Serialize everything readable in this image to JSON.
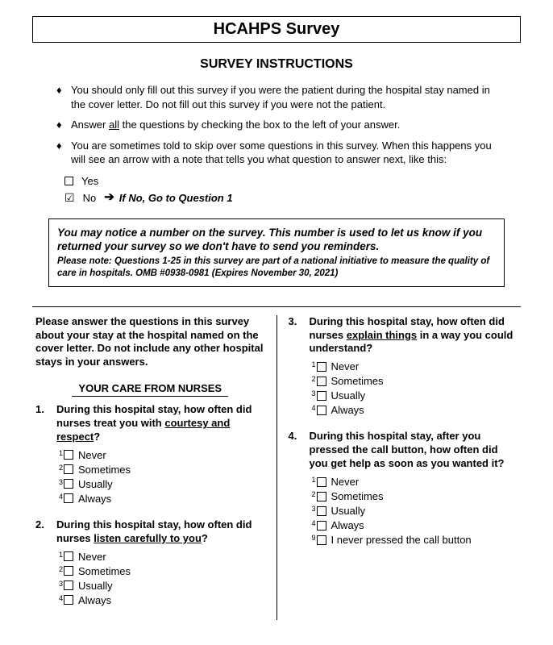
{
  "title": "HCAHPS Survey",
  "instructions_heading": "SURVEY INSTRUCTIONS",
  "bullets": {
    "b1": "You should only fill out this survey if you were the patient during the hospital stay named in the cover letter. Do not fill out this survey if you were not the patient.",
    "b2_pre": "Answer ",
    "b2_underline": "all",
    "b2_post": " the questions by checking the box to the left of your answer.",
    "b3": "You are sometimes told to skip over some questions in this survey. When this happens you will see an arrow with a note that tells you what question to answer next, like this:"
  },
  "example": {
    "yes": "Yes",
    "no": "No",
    "skip": "If No, Go to Question 1"
  },
  "note": {
    "main": "You may notice a number on the survey. This number is used to let us know if you returned your survey so we don't have to send you reminders.",
    "sub": "Please note: Questions 1-25 in this survey are part of a national initiative to measure the quality of care in hospitals. OMB #0938-0981 (Expires November 30, 2021)"
  },
  "intro": "Please answer the questions in this survey about your stay at the hospital named on the cover letter. Do not include any other hospital stays in your answers.",
  "section1": "YOUR CARE FROM NURSES",
  "q1": {
    "num": "1.",
    "text_pre": "During this hospital stay, how often did nurses treat you with ",
    "text_u": "courtesy and respect",
    "text_post": "?",
    "opts": [
      "Never",
      "Sometimes",
      "Usually",
      "Always"
    ],
    "sups": [
      "1",
      "2",
      "3",
      "4"
    ]
  },
  "q2": {
    "num": "2.",
    "text_pre": "During this hospital stay, how often did nurses ",
    "text_u": "listen carefully to you",
    "text_post": "?",
    "opts": [
      "Never",
      "Sometimes",
      "Usually",
      "Always"
    ],
    "sups": [
      "1",
      "2",
      "3",
      "4"
    ]
  },
  "q3": {
    "num": "3.",
    "text_pre": "During this hospital stay, how often did nurses ",
    "text_u": "explain things",
    "text_post": " in a way you could understand?",
    "opts": [
      "Never",
      "Sometimes",
      "Usually",
      "Always"
    ],
    "sups": [
      "1",
      "2",
      "3",
      "4"
    ]
  },
  "q4": {
    "num": "4.",
    "text": "During this hospital stay, after you pressed the call button, how often did you get help as soon as you wanted it?",
    "opts": [
      "Never",
      "Sometimes",
      "Usually",
      "Always",
      "I never pressed the call button"
    ],
    "sups": [
      "1",
      "2",
      "3",
      "4",
      "9"
    ]
  }
}
